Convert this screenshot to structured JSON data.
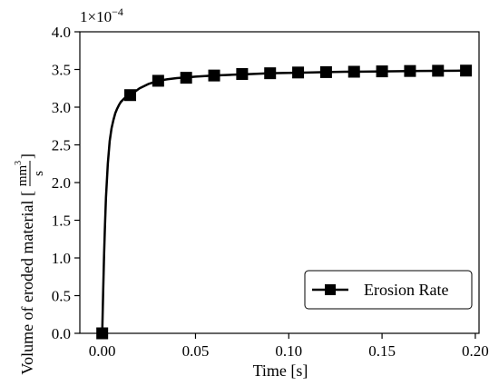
{
  "chart_data": {
    "type": "line",
    "xlabel": "Time [s]",
    "ylabel": {
      "prefix": "Volume of eroded material [",
      "numerator": "mm",
      "numerator_exponent": "3",
      "denominator": "s",
      "suffix": "]"
    },
    "y_scale_label": {
      "base": "1×10",
      "exponent": "−4"
    },
    "xlim": [
      -0.012,
      0.202
    ],
    "ylim": [
      0.0,
      4.0
    ],
    "x_ticks": [
      0.0,
      0.05,
      0.1,
      0.15,
      0.2
    ],
    "x_tick_labels": [
      "0.00",
      "0.05",
      "0.10",
      "0.15",
      "0.20"
    ],
    "y_ticks": [
      0.0,
      0.5,
      1.0,
      1.5,
      2.0,
      2.5,
      3.0,
      3.5,
      4.0
    ],
    "y_tick_labels": [
      "0.0",
      "0.5",
      "1.0",
      "1.5",
      "2.0",
      "2.5",
      "3.0",
      "3.5",
      "4.0"
    ],
    "grid": false,
    "legend_position": "lower-right",
    "series": [
      {
        "name": "Erosion Rate",
        "color": "#000000",
        "marker": "square",
        "curve": {
          "x": [
            0.0,
            0.0005,
            0.001,
            0.0015,
            0.002,
            0.003,
            0.004,
            0.005,
            0.006,
            0.007,
            0.008,
            0.009,
            0.01,
            0.012,
            0.015,
            0.02,
            0.025,
            0.03,
            0.035,
            0.04,
            0.045,
            0.05,
            0.06,
            0.07,
            0.08,
            0.09,
            0.1,
            0.11,
            0.12,
            0.13,
            0.14,
            0.15,
            0.16,
            0.17,
            0.18,
            0.19,
            0.195
          ],
          "y": [
            0.0,
            0.55,
            1.05,
            1.45,
            1.8,
            2.25,
            2.55,
            2.72,
            2.83,
            2.92,
            2.98,
            3.03,
            3.07,
            3.12,
            3.16,
            3.25,
            3.31,
            3.35,
            3.37,
            3.385,
            3.395,
            3.405,
            3.42,
            3.43,
            3.44,
            3.45,
            3.455,
            3.46,
            3.465,
            3.47,
            3.472,
            3.475,
            3.478,
            3.48,
            3.482,
            3.484,
            3.485
          ]
        },
        "markers": {
          "x": [
            0.0,
            0.015,
            0.03,
            0.045,
            0.06,
            0.075,
            0.09,
            0.105,
            0.12,
            0.135,
            0.15,
            0.165,
            0.18,
            0.195
          ],
          "y": [
            0.0,
            3.16,
            3.35,
            3.39,
            3.42,
            3.44,
            3.45,
            3.46,
            3.465,
            3.47,
            3.475,
            3.48,
            3.483,
            3.485
          ]
        }
      }
    ]
  }
}
